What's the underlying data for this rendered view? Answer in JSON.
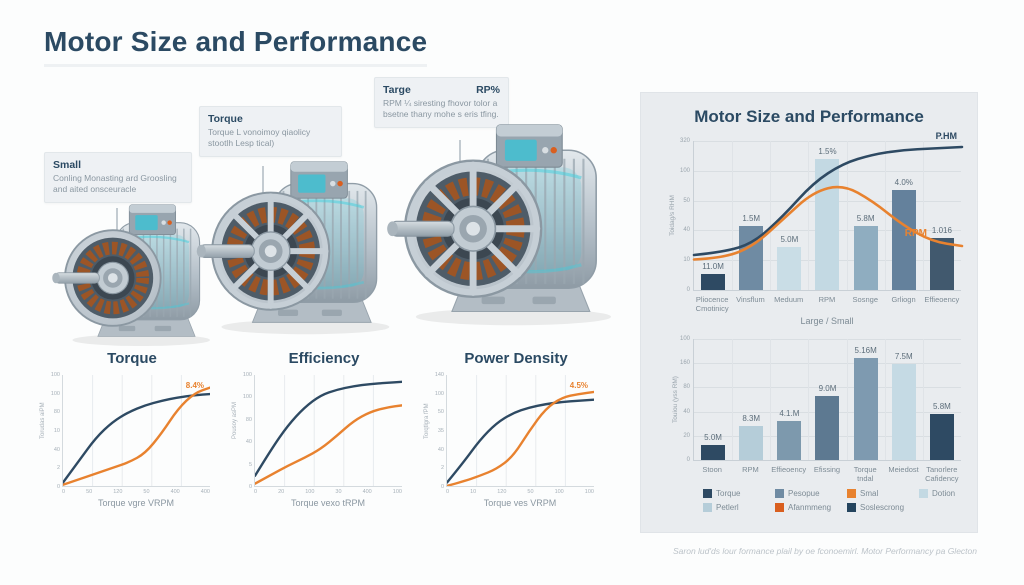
{
  "page": {
    "title": "Motor Size and Performance",
    "caption": "Saron lud'ds lour formance plail by oe fconoemirl. Motor Performancy pa Glecton"
  },
  "colors": {
    "navy": "#2e4a63",
    "orange": "#e8822f",
    "panel_bg": "#e9ecef",
    "grid": "#d9dee2"
  },
  "callouts": [
    {
      "title": "Small",
      "title_right": "",
      "body": "Conling Monasting ard Groosling and aited onsceuracle"
    },
    {
      "title": "Torque",
      "title_right": "",
      "body": "Torque L vonoimoy qiaolicy stootlh Lesp tical)"
    },
    {
      "title": "Targe",
      "title_right": "RP%",
      "body": "RPM ¼ siresting fhovor tolor a bsetne thany mohe s eris tfing."
    }
  ],
  "motors": [
    {
      "name": "small-motor"
    },
    {
      "name": "medium-motor"
    },
    {
      "name": "large-motor"
    }
  ],
  "chart_data": [
    {
      "type": "line",
      "title": "Torque",
      "xlabel": "Torque vgre VRPM",
      "ylabel": "Torudas aiPM",
      "x_ticks": [
        "0",
        "50",
        "120",
        "50",
        "400",
        "400"
      ],
      "y_ticks": [
        "100",
        "100",
        "80",
        "10",
        "40",
        "2",
        "0"
      ],
      "annotation": "8.4%",
      "series": [
        {
          "name": "navy",
          "color": "#2e4a63",
          "values": [
            0.04,
            0.24,
            0.44,
            0.58,
            0.67,
            0.73,
            0.77,
            0.8,
            0.82,
            0.83
          ]
        },
        {
          "name": "orange",
          "color": "#e8822f",
          "values": [
            0.02,
            0.07,
            0.12,
            0.17,
            0.22,
            0.3,
            0.48,
            0.7,
            0.84,
            0.89
          ]
        }
      ]
    },
    {
      "type": "line",
      "title": "Efficiency",
      "xlabel": "Torque vexo tRPM",
      "ylabel": "Pousoy asPM",
      "x_ticks": [
        "0",
        "20",
        "100",
        "30",
        "400",
        "100"
      ],
      "y_ticks": [
        "100",
        "100",
        "80",
        "40",
        "5",
        "0"
      ],
      "annotation": "",
      "series": [
        {
          "name": "navy",
          "color": "#2e4a63",
          "values": [
            0.1,
            0.34,
            0.55,
            0.71,
            0.82,
            0.87,
            0.9,
            0.92,
            0.93,
            0.94
          ]
        },
        {
          "name": "orange",
          "color": "#e8822f",
          "values": [
            0.03,
            0.11,
            0.19,
            0.26,
            0.34,
            0.46,
            0.59,
            0.67,
            0.71,
            0.73
          ]
        }
      ]
    },
    {
      "type": "line",
      "title": "Power Density",
      "xlabel": "Torque ves VRPM",
      "ylabel": "Torqtlgra fPM",
      "x_ticks": [
        "0",
        "10",
        "120",
        "50",
        "100",
        "100"
      ],
      "y_ticks": [
        "140",
        "100",
        "50",
        "35",
        "40",
        "2",
        "0"
      ],
      "annotation": "4.5%",
      "series": [
        {
          "name": "navy",
          "color": "#2e4a63",
          "values": [
            0.04,
            0.22,
            0.42,
            0.57,
            0.66,
            0.71,
            0.74,
            0.76,
            0.77,
            0.78
          ]
        },
        {
          "name": "orange",
          "color": "#e8822f",
          "values": [
            0.01,
            0.05,
            0.1,
            0.16,
            0.27,
            0.5,
            0.7,
            0.8,
            0.83,
            0.85
          ]
        }
      ]
    },
    {
      "type": "bar",
      "title": "Motor Size and Performance",
      "xlabel": "Large / Small",
      "ylabel": "Toidag/s RHM",
      "y_ticks": [
        "320",
        "100",
        "50",
        "40",
        "10",
        "0"
      ],
      "categories": [
        "Pliocence\nCmotinicy",
        "Vinsflum",
        "Meduum",
        "RPM",
        "Sosnge",
        "Grliogn",
        "Effieoency"
      ],
      "values_pct": [
        0.11,
        0.43,
        0.29,
        0.88,
        0.43,
        0.67,
        0.35
      ],
      "value_labels": [
        "11.0M",
        "1.5M",
        "5.0M",
        "1.5%",
        "5.8M",
        "4.0%",
        "1.016"
      ],
      "bar_colors": [
        "#2e4a63",
        "#6f8ba3",
        "#c9dde6",
        "#c3d9e3",
        "#8fadc0",
        "#64819c",
        "#41596e"
      ],
      "lines": [
        {
          "name": "P.HM",
          "color": "#2e4a63",
          "values": [
            0.24,
            0.26,
            0.32,
            0.5,
            0.72,
            0.85,
            0.91,
            0.94,
            0.95,
            0.96
          ]
        },
        {
          "name": "RPM",
          "color": "#e8822f",
          "values": [
            0.21,
            0.22,
            0.3,
            0.48,
            0.66,
            0.71,
            0.6,
            0.44,
            0.33,
            0.3
          ]
        }
      ]
    },
    {
      "type": "bar",
      "title": "",
      "xlabel": "",
      "ylabel": "Touiou (yss RM)",
      "y_ticks": [
        "100",
        "160",
        "80",
        "40",
        "20",
        "0"
      ],
      "categories": [
        "Stoon",
        "RPM",
        "Effieoency",
        "Efissing",
        "Torque\ntndal",
        "Meiedost",
        "Tanorlere\nCafidency"
      ],
      "values_pct": [
        0.12,
        0.28,
        0.32,
        0.53,
        0.84,
        0.79,
        0.38
      ],
      "value_labels": [
        "5.0M",
        "8.3M",
        "4.1.M",
        "9.0M",
        "5.16M",
        "7.5M",
        "5.8M"
      ],
      "bar_colors": [
        "#2e4a63",
        "#b5cdd9",
        "#7d99ad",
        "#5d7991",
        "#7e9ab0",
        "#c5dae4",
        "#2e4a63"
      ],
      "lines": []
    }
  ],
  "legend": {
    "rows": [
      [
        {
          "label": "Torque",
          "color": "#2e4a63"
        },
        {
          "label": "Pesopue",
          "color": "#6f8ba3"
        },
        {
          "label": "Smal",
          "color": "#e8822f"
        },
        {
          "label": "Dotion",
          "color": "#c3d9e3"
        }
      ],
      [
        {
          "label": "Petlerl",
          "color": "#b5cdd9"
        },
        {
          "label": "Afanmmeng",
          "color": "#d95f1f"
        },
        {
          "label": "Soslescrong",
          "color": "#24445e"
        }
      ]
    ]
  }
}
